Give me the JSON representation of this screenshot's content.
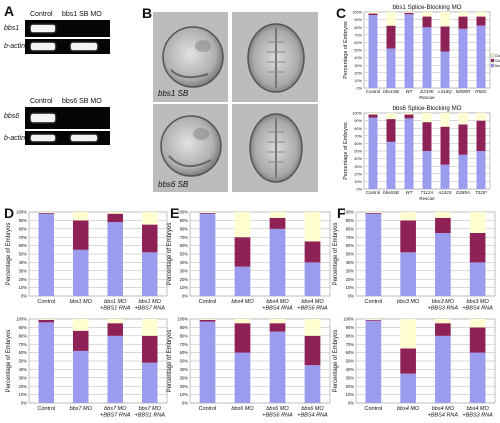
{
  "panel_labels": {
    "A": "A",
    "B": "B",
    "C": "C",
    "D": "D",
    "E": "E",
    "F": "F"
  },
  "colors": {
    "normal": "#9c9cef",
    "class1": "#8e2257",
    "class2": "#fefed0",
    "grid": "#b4b4b4",
    "axis": "#555555"
  },
  "gel_top": {
    "col_control": "Control",
    "col_mo": "bbs1 SB MO",
    "row1": "bbs1",
    "row2": "b-actin"
  },
  "gel_bottom": {
    "col_control": "Control",
    "col_mo": "bbs6 SB MO",
    "row1": "bbs6",
    "row2": "b-actin"
  },
  "embryo_labels": {
    "top": "bbs1 SB",
    "bottom": "bbs6 SB"
  },
  "chart_data": [
    {
      "id": "C1",
      "type": "bar",
      "stacked": true,
      "title": "bbs1 Splice-Blocking MO",
      "xlabel": "Rescue",
      "ylabel": "Percentage of Embryos",
      "yticks": [
        "0%",
        "10%",
        "20%",
        "30%",
        "40%",
        "50%",
        "60%",
        "70%",
        "80%",
        "90%",
        "100%"
      ],
      "categories": [
        "Control",
        "bbs1SB",
        "WT",
        "E234K",
        "L518Q",
        "M390R",
        "R50C"
      ],
      "series": [
        {
          "name": "Normal",
          "values": [
            96,
            52,
            97,
            80,
            48,
            78,
            82
          ]
        },
        {
          "name": "Class I",
          "values": [
            2,
            30,
            2,
            14,
            33,
            16,
            12
          ]
        },
        {
          "name": "Class II",
          "values": [
            2,
            18,
            1,
            6,
            19,
            6,
            6
          ]
        }
      ],
      "legend": [
        "Class II",
        "Class I",
        "Normal"
      ],
      "ylim": [
        0,
        100
      ]
    },
    {
      "id": "C2",
      "type": "bar",
      "stacked": true,
      "title": "bbs6 Splice-Blocking MO",
      "xlabel": "Rescue",
      "ylabel": "Percentage of Embryos",
      "yticks": [
        "0%",
        "10%",
        "20%",
        "30%",
        "40%",
        "50%",
        "60%",
        "70%",
        "80%",
        "90%",
        "100%"
      ],
      "categories": [
        "Control",
        "bbs6SB",
        "WT",
        "T112A",
        "A242S",
        "D285A",
        "T325*"
      ],
      "series": [
        {
          "name": "Normal",
          "values": [
            94,
            62,
            93,
            50,
            32,
            45,
            50
          ]
        },
        {
          "name": "Class I",
          "values": [
            4,
            30,
            5,
            38,
            50,
            40,
            40
          ]
        },
        {
          "name": "Class II",
          "values": [
            2,
            8,
            2,
            12,
            18,
            15,
            10
          ]
        }
      ],
      "ylim": [
        0,
        100
      ]
    },
    {
      "id": "D1",
      "type": "bar",
      "stacked": true,
      "ylabel": "Percentage of Embryos",
      "yticks": [
        "0%",
        "10%",
        "20%",
        "30%",
        "40%",
        "50%",
        "60%",
        "70%",
        "80%",
        "90%",
        "100%"
      ],
      "categories": [
        [
          "Control"
        ],
        [
          "bbs1 MO"
        ],
        [
          "bbs1 MO",
          "+BBS1 RNA"
        ],
        [
          "bbs1 MO",
          "+BBS7 RNA"
        ]
      ],
      "series": [
        {
          "name": "Normal",
          "values": [
            98,
            55,
            88,
            52
          ]
        },
        {
          "name": "Class I",
          "values": [
            1,
            35,
            10,
            33
          ]
        },
        {
          "name": "Class II",
          "values": [
            1,
            10,
            2,
            15
          ]
        }
      ],
      "ylim": [
        0,
        100
      ]
    },
    {
      "id": "D2",
      "type": "bar",
      "stacked": true,
      "ylabel": "Percentage of Embryos",
      "yticks": [
        "0%",
        "10%",
        "20%",
        "30%",
        "40%",
        "50%",
        "60%",
        "70%",
        "80%",
        "90%",
        "100%"
      ],
      "categories": [
        [
          "Control"
        ],
        [
          "bbs7 MO"
        ],
        [
          "bbs7 MO",
          "+BBS7 RNA"
        ],
        [
          "bbs7 MO",
          "+BBS1 RNA"
        ]
      ],
      "series": [
        {
          "name": "Normal",
          "values": [
            96,
            62,
            80,
            48
          ]
        },
        {
          "name": "Class I",
          "values": [
            3,
            24,
            15,
            32
          ]
        },
        {
          "name": "Class II",
          "values": [
            1,
            14,
            5,
            20
          ]
        }
      ],
      "ylim": [
        0,
        100
      ]
    },
    {
      "id": "E1",
      "type": "bar",
      "stacked": true,
      "ylabel": "Percentage of Embryos",
      "yticks": [
        "0%",
        "10%",
        "20%",
        "30%",
        "40%",
        "50%",
        "60%",
        "70%",
        "80%",
        "90%",
        "100%"
      ],
      "categories": [
        [
          "Control"
        ],
        [
          "bbs4 MO"
        ],
        [
          "bbs4 MO",
          "+BBS4 RNA"
        ],
        [
          "bbs4 MO",
          "+BBS6 RNA"
        ]
      ],
      "series": [
        {
          "name": "Normal",
          "values": [
            98,
            35,
            80,
            40
          ]
        },
        {
          "name": "Class I",
          "values": [
            1,
            35,
            13,
            25
          ]
        },
        {
          "name": "Class II",
          "values": [
            1,
            30,
            7,
            35
          ]
        }
      ],
      "ylim": [
        0,
        100
      ]
    },
    {
      "id": "E2",
      "type": "bar",
      "stacked": true,
      "ylabel": "Percentage of Embryos",
      "yticks": [
        "0%",
        "10%",
        "20%",
        "30%",
        "40%",
        "50%",
        "60%",
        "70%",
        "80%",
        "90%",
        "100%"
      ],
      "categories": [
        [
          "Control"
        ],
        [
          "bbs6 MO"
        ],
        [
          "bbs6 MO",
          "+BBS6 RNA"
        ],
        [
          "bbs6 MO",
          "+BBS4 RNA"
        ]
      ],
      "series": [
        {
          "name": "Normal",
          "values": [
            97,
            60,
            85,
            45
          ]
        },
        {
          "name": "Class I",
          "values": [
            2,
            35,
            10,
            35
          ]
        },
        {
          "name": "Class II",
          "values": [
            1,
            5,
            5,
            20
          ]
        }
      ],
      "ylim": [
        0,
        100
      ]
    },
    {
      "id": "F1",
      "type": "bar",
      "stacked": true,
      "ylabel": "Percentage of Embryos",
      "yticks": [
        "0%",
        "10%",
        "20%",
        "30%",
        "40%",
        "50%",
        "60%",
        "70%",
        "80%",
        "90%",
        "100%"
      ],
      "categories": [
        [
          "Control"
        ],
        [
          "bbs3 MO"
        ],
        [
          "bbs3 MO",
          "+BBS3 RNA"
        ],
        [
          "bbs3 MO",
          "+BBS4 RNA"
        ]
      ],
      "series": [
        {
          "name": "Normal",
          "values": [
            98,
            52,
            75,
            40
          ]
        },
        {
          "name": "Class I",
          "values": [
            1,
            38,
            18,
            35
          ]
        },
        {
          "name": "Class II",
          "values": [
            1,
            10,
            7,
            25
          ]
        }
      ],
      "ylim": [
        0,
        100
      ]
    },
    {
      "id": "F2",
      "type": "bar",
      "stacked": true,
      "ylabel": "Percentage of Embryos",
      "yticks": [
        "0%",
        "10%",
        "20%",
        "30%",
        "40%",
        "50%",
        "60%",
        "70%",
        "80%",
        "90%",
        "100%"
      ],
      "categories": [
        [
          "Control"
        ],
        [
          "bbs4 MO"
        ],
        [
          "bbs4 MO",
          "+BBS4 RNA"
        ],
        [
          "bbs4 MO",
          "+BBS3 RNA"
        ]
      ],
      "series": [
        {
          "name": "Normal",
          "values": [
            98,
            35,
            80,
            60
          ]
        },
        {
          "name": "Class I",
          "values": [
            1,
            30,
            15,
            30
          ]
        },
        {
          "name": "Class II",
          "values": [
            1,
            35,
            5,
            10
          ]
        }
      ],
      "ylim": [
        0,
        100
      ]
    }
  ]
}
